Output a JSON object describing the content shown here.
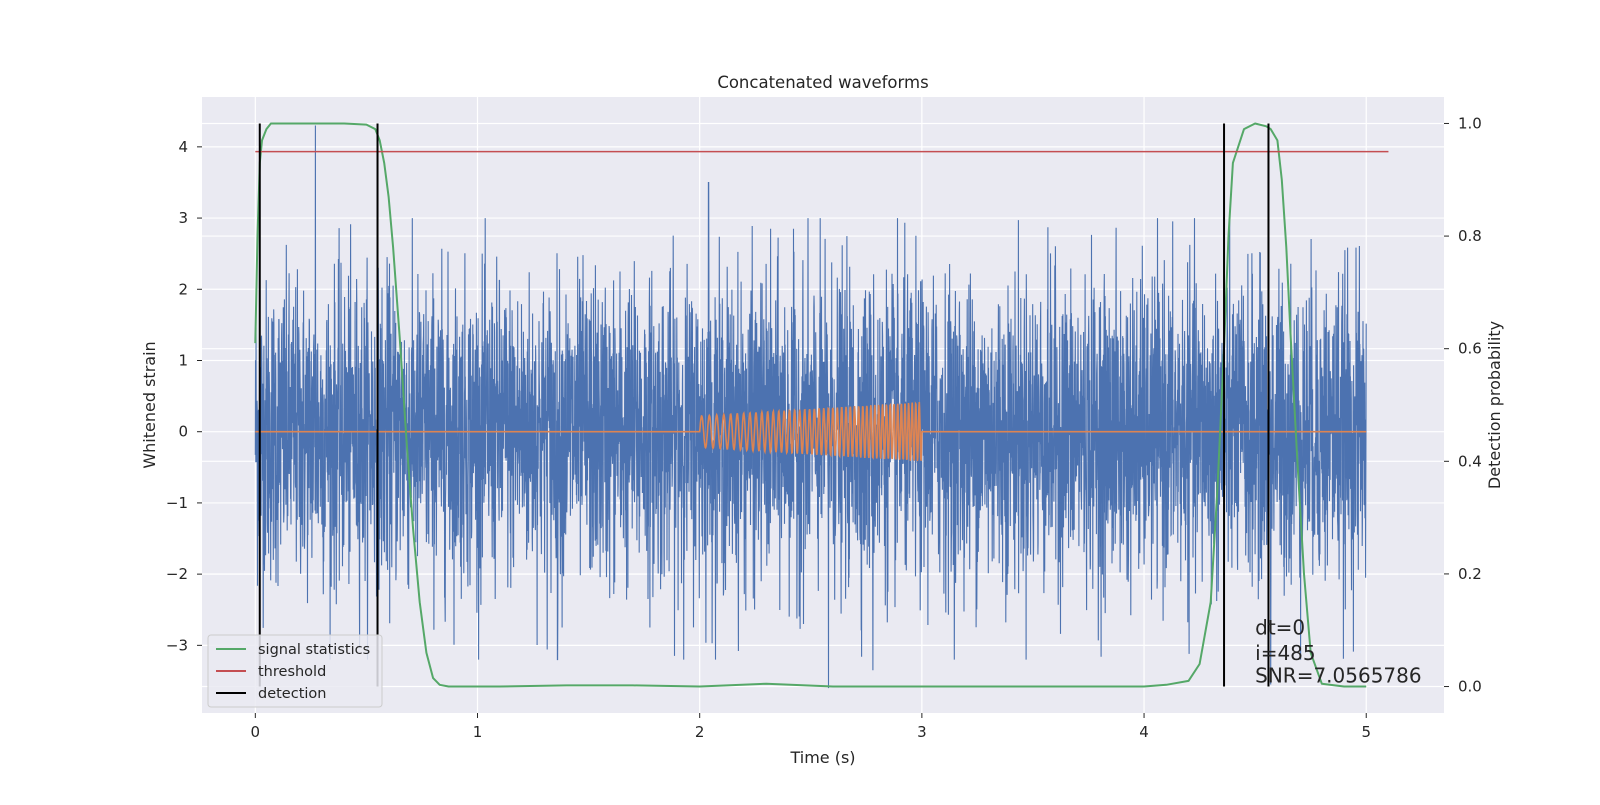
{
  "chart_data": {
    "type": "line",
    "title": "Concatenated waveforms",
    "xlabel": "Time (s)",
    "ylabel": "Whitened strain",
    "y2label": "Detection probability",
    "xlim": [
      -0.24,
      5.35
    ],
    "ylim": [
      -3.95,
      4.7
    ],
    "y2lim": [
      -0.047,
      1.047
    ],
    "xticks": [
      0,
      1,
      2,
      3,
      4,
      5
    ],
    "xtick_labels": [
      "0",
      "1",
      "2",
      "3",
      "4",
      "5"
    ],
    "yticks": [
      -3,
      -2,
      -1,
      0,
      1,
      2,
      3,
      4
    ],
    "ytick_labels": [
      "−3",
      "−2",
      "−1",
      "0",
      "1",
      "2",
      "3",
      "4"
    ],
    "y2ticks": [
      0.0,
      0.2,
      0.4,
      0.6,
      0.8,
      1.0
    ],
    "y2tick_labels": [
      "0.0",
      "0.2",
      "0.4",
      "0.6",
      "0.8",
      "1.0"
    ],
    "grid": true,
    "legend_position": "lower-left",
    "colors": {
      "noise": "#4c72b0",
      "template": "#dd8452",
      "signal_statistics": "#55a868",
      "threshold": "#c44e52",
      "detection": "#000000",
      "background": "#eaeaf2",
      "grid": "#ffffff"
    },
    "series": [
      {
        "role": "noise",
        "axis": "left",
        "x_range": [
          0,
          5
        ],
        "amplitude_range": [
          -3.6,
          4.3
        ],
        "peaks": [
          [
            0.27,
            4.3
          ],
          [
            2.04,
            3.5
          ],
          [
            2.58,
            -3.6
          ],
          [
            1.36,
            -3.2
          ],
          [
            2.78,
            -3.35
          ],
          [
            4.57,
            -3.55
          ]
        ]
      },
      {
        "role": "template",
        "axis": "left",
        "x_range": [
          0,
          5
        ],
        "chirp_start": 2.0,
        "chirp_end": 3.0,
        "amplitude_start": 0.22,
        "amplitude_end": 0.42
      },
      {
        "name": "signal statistics",
        "axis": "right",
        "x": [
          0,
          0.01,
          0.02,
          0.03,
          0.05,
          0.07,
          0.1,
          0.2,
          0.3,
          0.4,
          0.5,
          0.54,
          0.56,
          0.58,
          0.6,
          0.62,
          0.65,
          0.68,
          0.71,
          0.74,
          0.77,
          0.8,
          0.83,
          0.87,
          0.95,
          1.1,
          1.4,
          1.7,
          2.0,
          2.3,
          2.6,
          3.0,
          3.5,
          4.0,
          4.1,
          4.2,
          4.25,
          4.3,
          4.33,
          4.36,
          4.38,
          4.4,
          4.45,
          4.5,
          4.55,
          4.57,
          4.6,
          4.62,
          4.64,
          4.66,
          4.69,
          4.72,
          4.75,
          4.8,
          4.9,
          5.0
        ],
        "y": [
          0.61,
          0.8,
          0.93,
          0.97,
          0.99,
          1.0,
          1.0,
          1.0,
          1.0,
          1.0,
          0.998,
          0.99,
          0.97,
          0.93,
          0.87,
          0.78,
          0.62,
          0.44,
          0.28,
          0.15,
          0.06,
          0.015,
          0.003,
          0.0,
          0.0,
          0.0,
          0.002,
          0.002,
          0.0,
          0.005,
          0.0,
          0.0,
          0.0,
          0.0,
          0.003,
          0.01,
          0.04,
          0.15,
          0.35,
          0.6,
          0.8,
          0.93,
          0.99,
          1.0,
          0.995,
          0.99,
          0.97,
          0.9,
          0.78,
          0.62,
          0.4,
          0.2,
          0.06,
          0.005,
          0.0,
          0.0
        ]
      },
      {
        "name": "threshold",
        "axis": "right",
        "x": [
          0,
          5.1
        ],
        "y": [
          0.95,
          0.95
        ]
      }
    ],
    "detections": {
      "name": "detection",
      "x": [
        0.02,
        0.55,
        4.36,
        4.56
      ],
      "y2_range": [
        0.0,
        1.0
      ]
    },
    "annotations": [
      "dt=0",
      "i=485",
      "SNR=7.0565786"
    ],
    "legend": [
      "signal statistics",
      "threshold",
      "detection"
    ]
  }
}
